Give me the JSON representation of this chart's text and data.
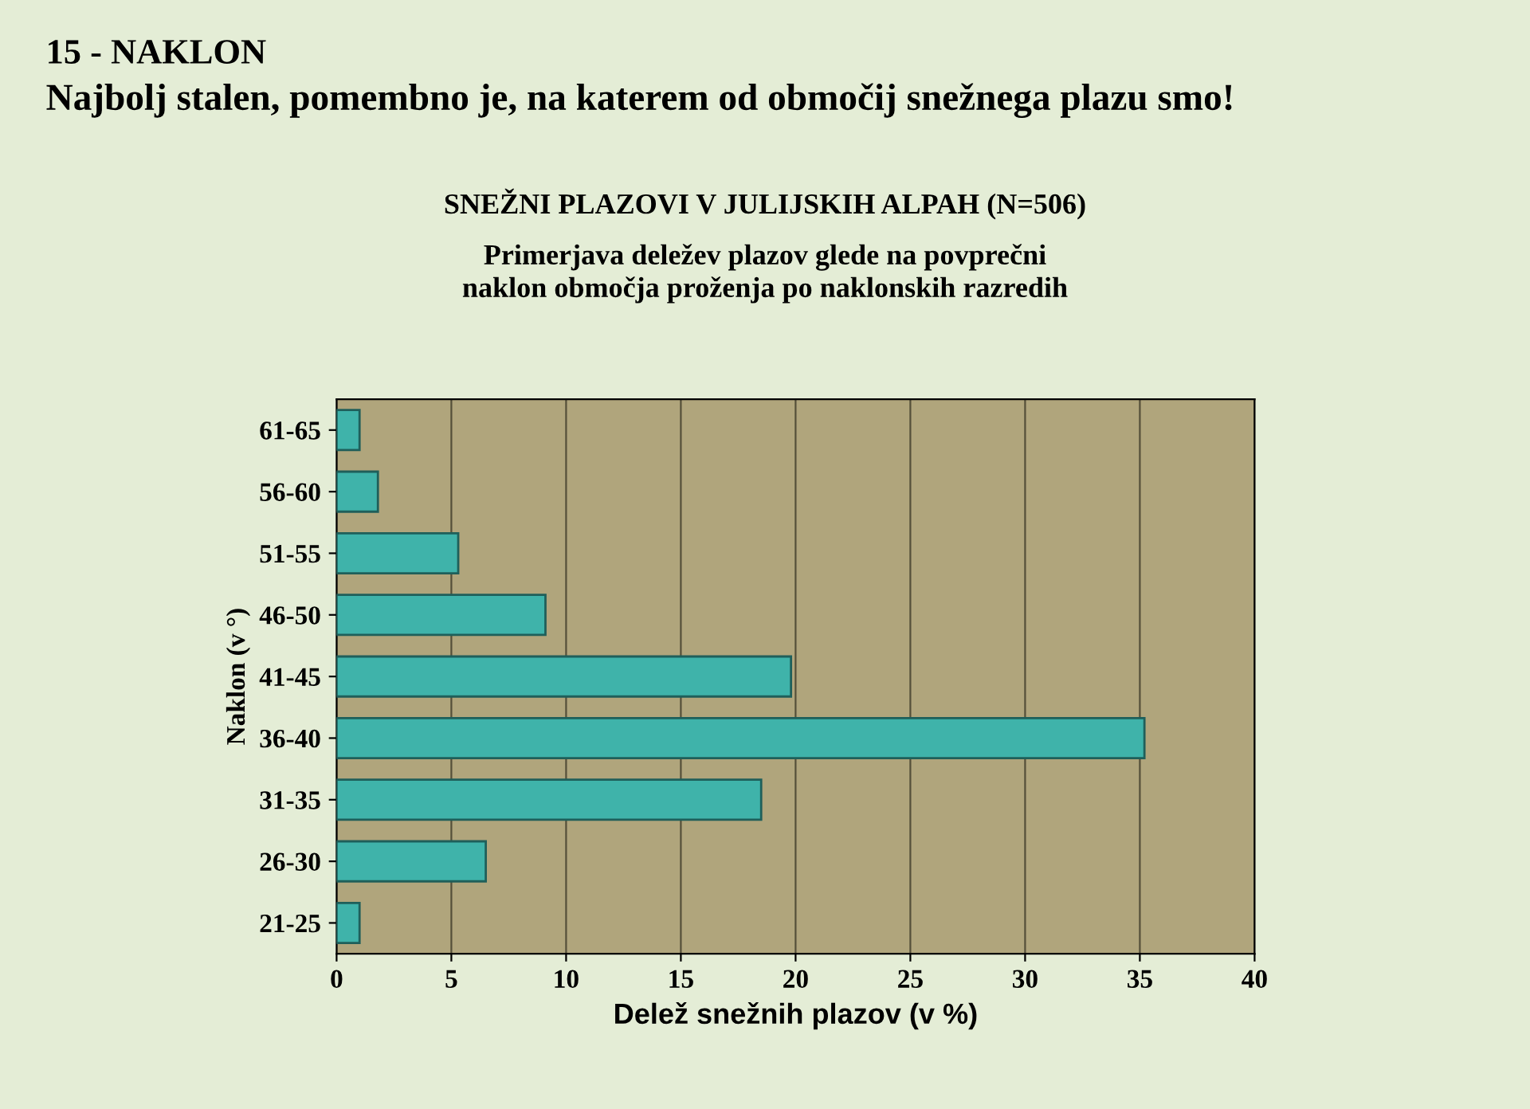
{
  "chart_data": {
    "type": "bar",
    "orientation": "horizontal",
    "title": "15 - NAKLON",
    "subtitle": "Najbolj stalen, pomembno je, na katerem od območij snežnega plazu smo!",
    "annotations": [
      "SNEŽNI PLAZOVI V JULIJSKIH ALPAH (N=506)",
      "Primerjava deležev plazov glede na povprečni\nnaklon območja proženja po naklonskih razredih"
    ],
    "categories": [
      "61-65",
      "56-60",
      "51-55",
      "46-50",
      "41-45",
      "36-40",
      "31-35",
      "26-30",
      "21-25"
    ],
    "values": [
      1.0,
      1.8,
      5.3,
      9.1,
      19.8,
      35.2,
      18.5,
      6.5,
      1.0
    ],
    "color": "#3fb3aa",
    "xlim": [
      0,
      40
    ],
    "xticks": [
      0,
      5,
      10,
      15,
      20,
      25,
      30,
      35,
      40
    ],
    "xlabel": "Delež snežnih plazov (v %)",
    "ylabel": "Naklon (v °)",
    "grid": "x",
    "legend": false
  }
}
